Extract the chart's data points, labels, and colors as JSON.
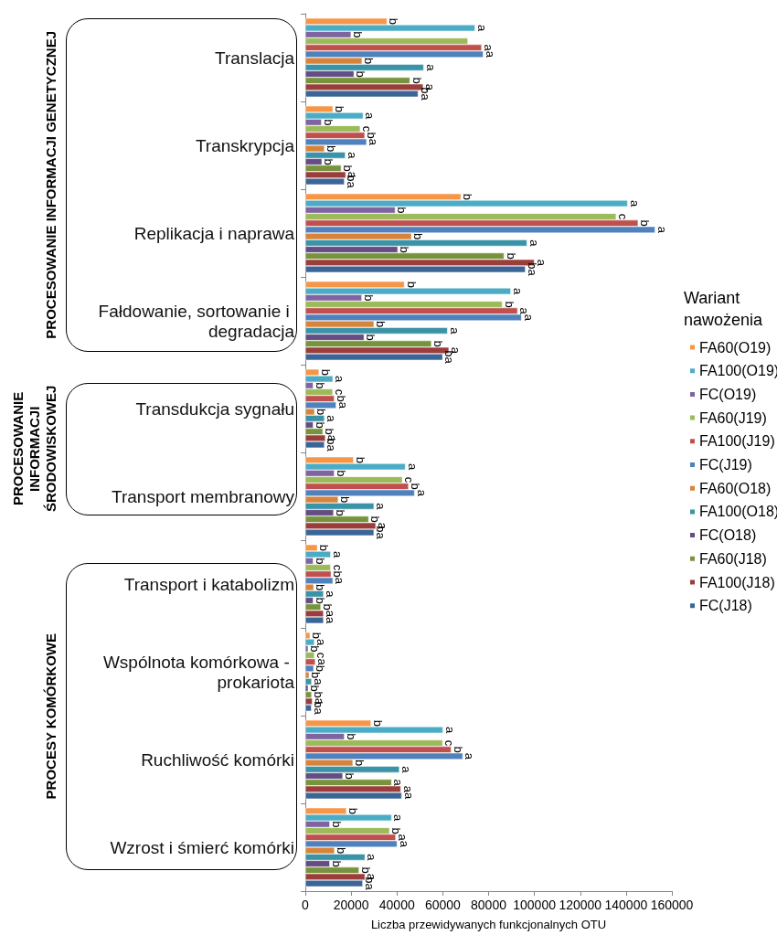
{
  "chart_data": {
    "type": "bar",
    "orientation": "horizontal",
    "categories": [
      "Translacja",
      "Transkrypcja",
      "Replikacja i naprawa",
      "Fałdowanie, sortowanie i degradacja",
      "Transdukcja sygnału",
      "Transport membranowy",
      "Transport i katabolizm",
      "Wspólnota komórkowa - prokariota",
      "Ruchliwość komórki",
      "Wzrost i śmierć komórki"
    ],
    "series": [
      {
        "name": "FA60(O19)",
        "color": "#f79646",
        "values": [
          35700,
          12100,
          68000,
          43300,
          6000,
          21100,
          5300,
          2100,
          28700,
          18000
        ],
        "value_labels": [
          "b",
          "b",
          "b",
          "b",
          "b",
          "b",
          "b",
          "b",
          "b",
          "b"
        ]
      },
      {
        "name": "FA100(O19)",
        "color": "#4bacc6",
        "values": [
          74100,
          25300,
          140700,
          89700,
          12100,
          43700,
          11100,
          4000,
          60100,
          37700
        ],
        "value_labels": [
          "a",
          "a",
          "a",
          "a",
          "a",
          "a",
          "a",
          "a",
          "a",
          "a"
        ]
      },
      {
        "name": "FC(O19)",
        "color": "#8064a2",
        "values": [
          20000,
          7100,
          39300,
          24700,
          3500,
          12700,
          3500,
          1300,
          17100,
          10700
        ],
        "value_labels": [
          "b",
          "b",
          "b",
          "b",
          "b",
          "b",
          "b",
          "b",
          "b",
          "b"
        ]
      },
      {
        "name": "FA60(J19)",
        "color": "#9bbb59",
        "values": [
          71000,
          24000,
          135700,
          86000,
          12000,
          42400,
          11100,
          4000,
          60000,
          36800
        ],
        "value_labels": [
          null,
          "c",
          "c",
          "b",
          "c",
          "c",
          "c",
          "c",
          "c",
          "b"
        ]
      },
      {
        "name": "FA100(J19)",
        "color": "#c0504d",
        "values": [
          77000,
          26000,
          145300,
          92700,
          12700,
          45100,
          11300,
          4400,
          63700,
          39500
        ],
        "value_labels": [
          "a",
          "b",
          "b",
          "a",
          "b",
          "b",
          "b",
          "a",
          "b",
          "a"
        ]
      },
      {
        "name": "FC(J19)",
        "color": "#4f81bd",
        "values": [
          77700,
          26800,
          152700,
          94400,
          13500,
          47700,
          12100,
          3700,
          68800,
          40100
        ],
        "value_labels": [
          "a",
          "a",
          "a",
          "a",
          "a",
          "a",
          "a",
          "b",
          "a",
          "a"
        ]
      },
      {
        "name": "FA60(O18)",
        "color": "#d7833a",
        "values": [
          24800,
          8400,
          46400,
          30000,
          4100,
          14400,
          3700,
          1700,
          20800,
          12800
        ],
        "value_labels": [
          "b",
          "b",
          "b",
          "b",
          "b",
          "b",
          "b",
          "b",
          "b",
          "b"
        ]
      },
      {
        "name": "FA100(O18)",
        "color": "#3a93a6",
        "values": [
          51700,
          17500,
          96800,
          62100,
          8400,
          30000,
          8000,
          2800,
          41100,
          26100
        ],
        "value_labels": [
          "a",
          "a",
          "a",
          "a",
          "a",
          "a",
          "a",
          "a",
          "a",
          "a"
        ]
      },
      {
        "name": "FC(O18)",
        "color": "#644d85",
        "values": [
          21300,
          7300,
          40400,
          25700,
          3500,
          12400,
          3500,
          1300,
          16400,
          10700
        ],
        "value_labels": [
          "b",
          "b",
          "b",
          "b",
          "b",
          "b",
          "b",
          "b",
          "b",
          "b"
        ]
      },
      {
        "name": "FA60(J18)",
        "color": "#77933c",
        "values": [
          45700,
          15700,
          86800,
          55100,
          7700,
          27700,
          6800,
          2800,
          37700,
          23500
        ],
        "value_labels": [
          "b",
          "b",
          "b",
          "b",
          "b",
          "b",
          "b",
          "b",
          "a",
          "b"
        ]
      },
      {
        "name": "FA100(J18)",
        "color": "#9b3d3a",
        "values": [
          51500,
          17700,
          100000,
          62700,
          8800,
          30800,
          8000,
          3100,
          41700,
          26100
        ],
        "value_labels": [
          "a",
          "a",
          "a",
          "a",
          "a",
          "a",
          "a",
          "a",
          "a",
          "a"
        ]
      },
      {
        "name": "FC(J18)",
        "color": "#3c6597",
        "values": [
          49300,
          17100,
          96100,
          60000,
          8400,
          30000,
          8000,
          2700,
          42100,
          25100
        ],
        "value_labels": [
          "ba",
          "ba",
          "ba",
          "ba",
          "ba",
          "ba",
          "a",
          "ba",
          "a",
          "ba"
        ]
      }
    ],
    "xlim": [
      0,
      160000
    ],
    "xticks": [
      0,
      20000,
      40000,
      60000,
      80000,
      100000,
      120000,
      140000,
      160000
    ],
    "xlabel": "Liczba przewidywanych funkcjonalnych OTU",
    "legend": "right",
    "legend_title": "Wariant nawożenia",
    "annotations": [
      "PROCESOWANIE INFORMACJI GENETYCZNEJ",
      "PROCESOWANIE INFORMACJI ŚRODOWISKOWEJ",
      "PROCESY KOMÓRKOWE"
    ]
  }
}
